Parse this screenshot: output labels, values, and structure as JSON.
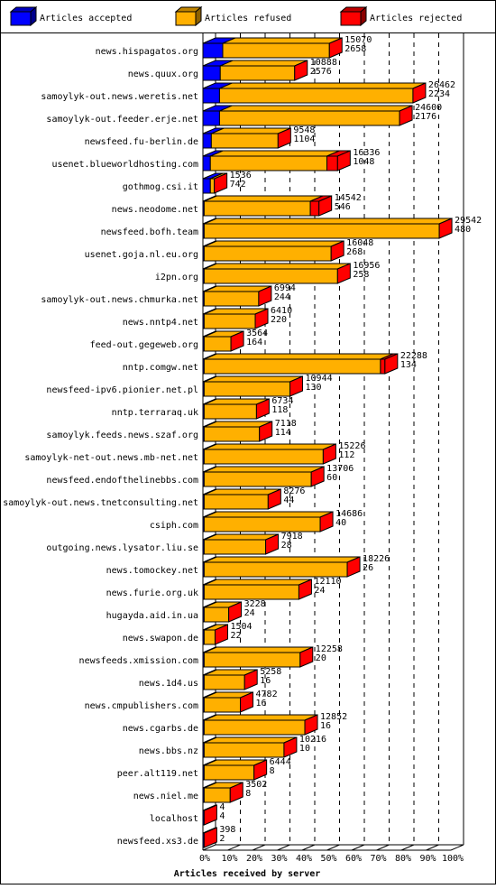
{
  "colors": {
    "accepted": "#0000ff",
    "refused": "#ffb000",
    "rejected": "#ff0000",
    "grid": "#000000"
  },
  "chart_data": {
    "type": "bar",
    "orientation": "horizontal",
    "stacked": true,
    "xlabel": "Articles received by server",
    "xlim": [
      0,
      100
    ],
    "xunit": "percent",
    "xticks": [
      "0%",
      "10%",
      "20%",
      "30%",
      "40%",
      "50%",
      "60%",
      "70%",
      "80%",
      "90%",
      "100%"
    ],
    "legend_position": "top",
    "legend": [
      {
        "key": "accepted",
        "label": "Articles accepted"
      },
      {
        "key": "refused",
        "label": "Articles refused"
      },
      {
        "key": "rejected",
        "label": "Articles rejected"
      }
    ],
    "categories": [
      "news.hispagatos.org",
      "news.quux.org",
      "samoylyk-out.news.weretis.net",
      "samoylyk-out.feeder.erje.net",
      "newsfeed.fu-berlin.de",
      "usenet.blueworldhosting.com",
      "gothmog.csi.it",
      "news.neodome.net",
      "newsfeed.bofh.team",
      "usenet.goja.nl.eu.org",
      "i2pn.org",
      "samoylyk-out.news.chmurka.net",
      "news.nntp4.net",
      "feed-out.gegeweb.org",
      "nntp.comgw.net",
      "newsfeed-ipv6.pionier.net.pl",
      "nntp.terraraq.uk",
      "samoylyk.feeds.news.szaf.org",
      "samoylyk-net-out.news.mb-net.net",
      "newsfeed.endofthelinebbs.com",
      "samoylyk-out.news.tnetconsulting.net",
      "csiph.com",
      "outgoing.news.lysator.liu.se",
      "news.tomockey.net",
      "news.furie.org.uk",
      "hugayda.aid.in.ua",
      "news.swapon.de",
      "newsfeeds.xmission.com",
      "news.1d4.us",
      "news.cmpublishers.com",
      "news.cgarbs.de",
      "news.bbs.nz",
      "peer.alt119.net",
      "news.niel.me",
      "localhost",
      "newsfeed.xs3.de"
    ],
    "label_primary": [
      15070,
      10888,
      26462,
      24600,
      9548,
      16336,
      1536,
      14542,
      29542,
      16048,
      16956,
      6994,
      6410,
      3564,
      22288,
      10944,
      6734,
      7118,
      15226,
      13706,
      8276,
      14686,
      7918,
      18226,
      12110,
      3228,
      1504,
      12258,
      5258,
      4782,
      12852,
      10216,
      6444,
      3502,
      4,
      398
    ],
    "label_secondary": [
      2658,
      2576,
      2234,
      2176,
      1104,
      1048,
      742,
      546,
      480,
      268,
      258,
      244,
      220,
      164,
      134,
      130,
      118,
      114,
      112,
      60,
      44,
      40,
      28,
      26,
      24,
      24,
      22,
      20,
      16,
      16,
      16,
      10,
      8,
      8,
      4,
      2
    ],
    "series": [
      {
        "key": "accepted",
        "name": "Articles accepted",
        "values": [
          8.0,
          7.0,
          6.7,
          6.7,
          3.4,
          3.0,
          3.0,
          0.5,
          0.5,
          0.5,
          0.5,
          0.5,
          0.5,
          0.5,
          0.5,
          0.5,
          0.5,
          0.5,
          0.5,
          0.5,
          0.5,
          0.5,
          0.5,
          0.5,
          0.5,
          0.5,
          0.5,
          0.5,
          0.5,
          0.5,
          0.5,
          0.5,
          0.5,
          0.5,
          0.5,
          0.5
        ]
      },
      {
        "key": "refused",
        "name": "Articles refused",
        "values": [
          43.0,
          30.0,
          78.0,
          72.6,
          26.9,
          47.0,
          1.6,
          42.8,
          94.8,
          51.2,
          53.8,
          22.0,
          20.6,
          10.8,
          71.1,
          34.6,
          21.1,
          22.3,
          48.0,
          43.2,
          25.8,
          46.8,
          24.8,
          57.7,
          38.2,
          9.9,
          4.4,
          38.7,
          16.3,
          14.6,
          40.6,
          32.2,
          20.1,
          10.5,
          0.0,
          0.0
        ]
      },
      {
        "key": "rejected",
        "name": "Articles rejected",
        "values": [
          0.0,
          0.0,
          0.0,
          0.0,
          0.0,
          4.3,
          0.0,
          3.5,
          0.0,
          0.0,
          0.0,
          0.0,
          0.0,
          0.0,
          1.8,
          0.0,
          0.0,
          0.0,
          0.0,
          0.0,
          0.0,
          0.0,
          0.0,
          0.0,
          0.0,
          0.0,
          0.0,
          0.0,
          0.0,
          0.0,
          0.0,
          0.0,
          0.0,
          0.0,
          0.0,
          0.0
        ]
      }
    ]
  }
}
